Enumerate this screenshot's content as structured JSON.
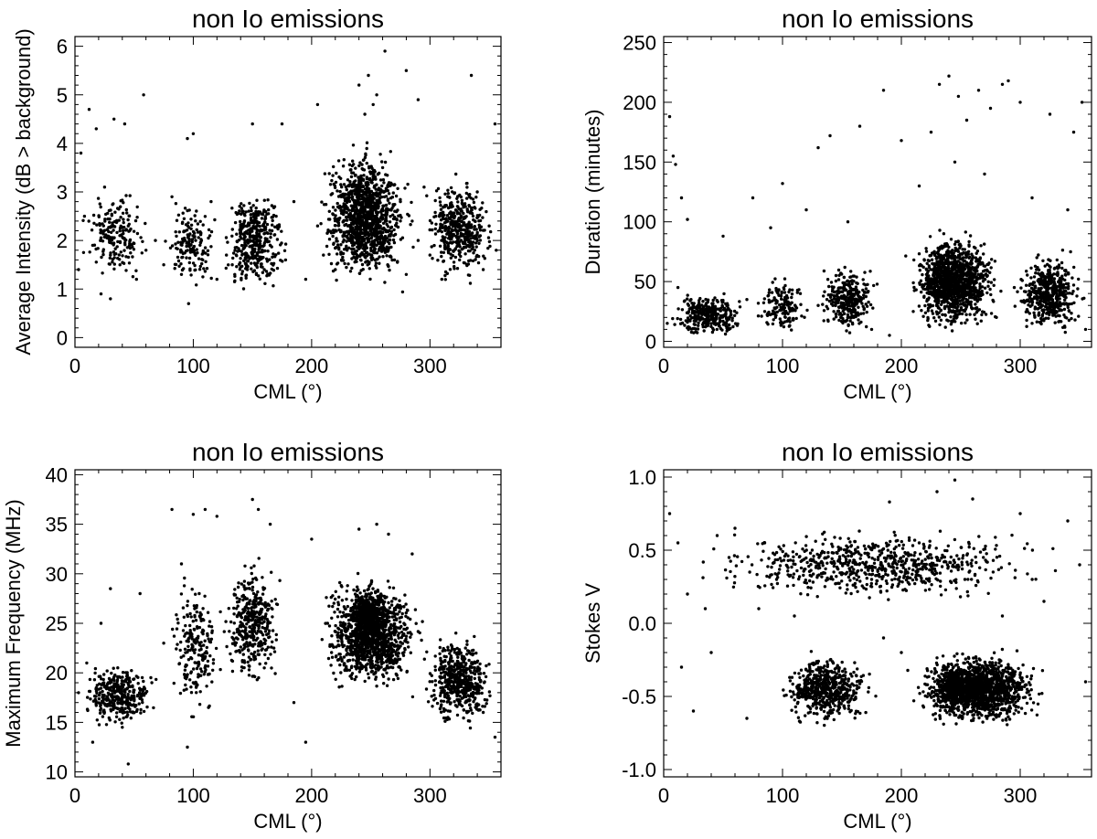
{
  "chart_data": [
    {
      "type": "scatter",
      "title": "non Io emissions",
      "xlabel": "CML (°)",
      "ylabel": "Average Intensity (dB > background)",
      "xlim": [
        0,
        360
      ],
      "ylim": [
        -0.2,
        6.2
      ],
      "xticks": [
        0,
        100,
        200,
        300
      ],
      "yticks": [
        0,
        1,
        2,
        3,
        4,
        5,
        6
      ],
      "xtick_labels": [
        "0",
        "100",
        "200",
        "300"
      ],
      "ytick_labels": [
        "0",
        "1",
        "2",
        "3",
        "4",
        "5",
        "6"
      ],
      "grid": false,
      "marker_color": "#000000",
      "points": [
        [
          5,
          3.8
        ],
        [
          12,
          4.7
        ],
        [
          18,
          4.3
        ],
        [
          25,
          3.1
        ],
        [
          33,
          4.5
        ],
        [
          42,
          4.4
        ],
        [
          58,
          5.0
        ],
        [
          95,
          4.1
        ],
        [
          100,
          4.2
        ],
        [
          150,
          4.4
        ],
        [
          175,
          4.4
        ],
        [
          205,
          4.8
        ],
        [
          240,
          5.2
        ],
        [
          248,
          5.4
        ],
        [
          255,
          5.0
        ],
        [
          262,
          5.9
        ],
        [
          280,
          5.5
        ],
        [
          290,
          4.9
        ],
        [
          335,
          5.4
        ],
        [
          355,
          4.4
        ],
        [
          245,
          4.6
        ],
        [
          252,
          4.8
        ],
        [
          3,
          1.4
        ],
        [
          8,
          2.5
        ],
        [
          15,
          1.9
        ],
        [
          22,
          0.9
        ],
        [
          30,
          0.8
        ],
        [
          38,
          1.5
        ],
        [
          45,
          2.3
        ],
        [
          52,
          1.2
        ],
        [
          60,
          1.8
        ],
        [
          68,
          2.0
        ],
        [
          75,
          1.5
        ],
        [
          82,
          2.9
        ],
        [
          90,
          1.3
        ],
        [
          96,
          0.7
        ],
        [
          102,
          2.0
        ],
        [
          108,
          1.6
        ],
        [
          115,
          2.8
        ],
        [
          120,
          1.2
        ],
        [
          128,
          1.7
        ],
        [
          135,
          1.3
        ],
        [
          140,
          2.2
        ],
        [
          145,
          1.5
        ],
        [
          150,
          1.7
        ],
        [
          155,
          2.0
        ],
        [
          160,
          1.4
        ],
        [
          165,
          1.9
        ],
        [
          170,
          2.5
        ],
        [
          178,
          1.6
        ],
        [
          185,
          2.8
        ],
        [
          195,
          1.2
        ],
        [
          205,
          2.3
        ],
        [
          210,
          1.7
        ],
        [
          215,
          2.6
        ],
        [
          220,
          1.4
        ],
        [
          225,
          2.9
        ],
        [
          230,
          1.8
        ],
        [
          235,
          2.4
        ],
        [
          240,
          3.2
        ],
        [
          245,
          2.1
        ],
        [
          250,
          2.6
        ],
        [
          255,
          1.9
        ],
        [
          260,
          3.5
        ],
        [
          265,
          2.2
        ],
        [
          270,
          1.6
        ],
        [
          275,
          2.8
        ],
        [
          280,
          1.3
        ],
        [
          285,
          2.4
        ],
        [
          290,
          2.0
        ],
        [
          295,
          3.1
        ],
        [
          300,
          1.7
        ],
        [
          305,
          2.5
        ],
        [
          310,
          1.2
        ],
        [
          315,
          2.9
        ],
        [
          320,
          2.1
        ],
        [
          325,
          1.6
        ],
        [
          330,
          2.7
        ],
        [
          335,
          1.9
        ],
        [
          340,
          3.0
        ],
        [
          345,
          1.4
        ],
        [
          350,
          2.3
        ],
        [
          356,
          1.8
        ]
      ],
      "clusters": [
        {
          "x": [
            0,
            70
          ],
          "y": [
            1.0,
            3.2
          ],
          "count": 180
        },
        {
          "x": [
            70,
            125
          ],
          "y": [
            0.8,
            3.0
          ],
          "count": 150
        },
        {
          "x": [
            120,
            185
          ],
          "y": [
            0.6,
            3.4
          ],
          "count": 380
        },
        {
          "x": [
            200,
            290
          ],
          "y": [
            0.8,
            4.2
          ],
          "count": 1150
        },
        {
          "x": [
            290,
            360
          ],
          "y": [
            0.9,
            3.6
          ],
          "count": 420
        }
      ]
    },
    {
      "type": "scatter",
      "title": "non Io emissions",
      "xlabel": "CML (°)",
      "ylabel": "Duration (minutes)",
      "xlim": [
        0,
        360
      ],
      "ylim": [
        -5,
        255
      ],
      "xticks": [
        0,
        100,
        200,
        300
      ],
      "yticks": [
        0,
        50,
        100,
        150,
        200,
        250
      ],
      "xtick_labels": [
        "0",
        "100",
        "200",
        "300"
      ],
      "ytick_labels": [
        "0",
        "50",
        "100",
        "150",
        "200",
        "250"
      ],
      "grid": false,
      "marker_color": "#000000",
      "points": [
        [
          5,
          188
        ],
        [
          8,
          155
        ],
        [
          10,
          148
        ],
        [
          15,
          120
        ],
        [
          20,
          102
        ],
        [
          100,
          132
        ],
        [
          130,
          162
        ],
        [
          140,
          172
        ],
        [
          165,
          180
        ],
        [
          185,
          210
        ],
        [
          200,
          168
        ],
        [
          225,
          175
        ],
        [
          232,
          215
        ],
        [
          240,
          222
        ],
        [
          248,
          205
        ],
        [
          255,
          185
        ],
        [
          265,
          210
        ],
        [
          275,
          195
        ],
        [
          285,
          215
        ],
        [
          290,
          218
        ],
        [
          300,
          200
        ],
        [
          325,
          190
        ],
        [
          345,
          175
        ],
        [
          352,
          200
        ],
        [
          50,
          88
        ],
        [
          75,
          120
        ],
        [
          90,
          95
        ],
        [
          120,
          110
        ],
        [
          155,
          100
        ],
        [
          215,
          130
        ],
        [
          245,
          150
        ],
        [
          270,
          140
        ],
        [
          310,
          120
        ],
        [
          340,
          110
        ],
        [
          3,
          15
        ],
        [
          12,
          45
        ],
        [
          25,
          30
        ],
        [
          40,
          20
        ],
        [
          55,
          10
        ],
        [
          70,
          35
        ],
        [
          85,
          25
        ],
        [
          100,
          15
        ],
        [
          115,
          40
        ],
        [
          130,
          30
        ],
        [
          145,
          55
        ],
        [
          160,
          20
        ],
        [
          175,
          10
        ],
        [
          190,
          5
        ],
        [
          210,
          25
        ],
        [
          225,
          60
        ],
        [
          235,
          40
        ],
        [
          250,
          80
        ],
        [
          265,
          35
        ],
        [
          280,
          20
        ],
        [
          295,
          45
        ],
        [
          310,
          15
        ],
        [
          325,
          55
        ],
        [
          340,
          30
        ],
        [
          355,
          10
        ]
      ],
      "clusters": [
        {
          "x": [
            0,
            75
          ],
          "y": [
            0,
            45
          ],
          "count": 300
        },
        {
          "x": [
            75,
            125
          ],
          "y": [
            0,
            60
          ],
          "count": 150
        },
        {
          "x": [
            125,
            185
          ],
          "y": [
            0,
            70
          ],
          "count": 300
        },
        {
          "x": [
            200,
            290
          ],
          "y": [
            0,
            100
          ],
          "count": 1200
        },
        {
          "x": [
            290,
            360
          ],
          "y": [
            0,
            80
          ],
          "count": 500
        }
      ]
    },
    {
      "type": "scatter",
      "title": "non Io emissions",
      "xlabel": "CML (°)",
      "ylabel": "Maximum Frequency (MHz)",
      "xlim": [
        0,
        360
      ],
      "ylim": [
        9.5,
        40.5
      ],
      "xticks": [
        0,
        100,
        200,
        300
      ],
      "yticks": [
        10,
        15,
        20,
        25,
        30,
        35,
        40
      ],
      "xtick_labels": [
        "0",
        "100",
        "200",
        "300"
      ],
      "ytick_labels": [
        "10",
        "15",
        "20",
        "25",
        "30",
        "35",
        "40"
      ],
      "grid": false,
      "marker_color": "#000000",
      "points": [
        [
          45,
          10.8
        ],
        [
          82,
          36.5
        ],
        [
          100,
          36.0
        ],
        [
          110,
          36.5
        ],
        [
          120,
          35.8
        ],
        [
          150,
          37.5
        ],
        [
          155,
          36.5
        ],
        [
          165,
          35.0
        ],
        [
          200,
          33.5
        ],
        [
          240,
          34.5
        ],
        [
          255,
          35.0
        ],
        [
          265,
          34.0
        ],
        [
          285,
          32.0
        ],
        [
          3,
          18.0
        ],
        [
          10,
          21.0
        ],
        [
          15,
          13.0
        ],
        [
          22,
          25.0
        ],
        [
          30,
          28.5
        ],
        [
          40,
          14.5
        ],
        [
          55,
          28.0
        ],
        [
          65,
          19.0
        ],
        [
          75,
          23.0
        ],
        [
          90,
          31.0
        ],
        [
          95,
          12.5
        ],
        [
          105,
          28.0
        ],
        [
          130,
          26.5
        ],
        [
          160,
          20.5
        ],
        [
          185,
          17.0
        ],
        [
          195,
          13.0
        ],
        [
          355,
          13.5
        ],
        [
          345,
          16.0
        ],
        [
          330,
          22.5
        ],
        [
          320,
          19.0
        ]
      ],
      "clusters": [
        {
          "x": [
            0,
            75
          ],
          "y": [
            14.0,
            21.5
          ],
          "count": 350
        },
        {
          "x": [
            75,
            130
          ],
          "y": [
            14.0,
            31.0
          ],
          "count": 200
        },
        {
          "x": [
            120,
            180
          ],
          "y": [
            17.0,
            33.0
          ],
          "count": 380
        },
        {
          "x": [
            200,
            300
          ],
          "y": [
            17.0,
            31.0
          ],
          "count": 1250
        },
        {
          "x": [
            230,
            265
          ],
          "y": [
            23.0,
            29.0
          ],
          "count": 300
        },
        {
          "x": [
            290,
            360
          ],
          "y": [
            13.5,
            25.0
          ],
          "count": 500
        }
      ]
    },
    {
      "type": "scatter",
      "title": "non Io emissions",
      "xlabel": "CML (°)",
      "ylabel": "Stokes V",
      "xlim": [
        0,
        360
      ],
      "ylim": [
        -1.05,
        1.05
      ],
      "xticks": [
        0,
        100,
        200,
        300
      ],
      "yticks": [
        -1.0,
        -0.5,
        0.0,
        0.5,
        1.0
      ],
      "xtick_labels": [
        "0",
        "100",
        "200",
        "300"
      ],
      "ytick_labels": [
        "-1.0",
        "-0.5",
        "0.0",
        "0.5",
        "1.0"
      ],
      "grid": false,
      "marker_color": "#000000",
      "points": [
        [
          5,
          0.75
        ],
        [
          15,
          -0.3
        ],
        [
          25,
          -0.6
        ],
        [
          45,
          0.6
        ],
        [
          60,
          0.65
        ],
        [
          70,
          -0.65
        ],
        [
          85,
          0.55
        ],
        [
          190,
          0.83
        ],
        [
          200,
          -0.2
        ],
        [
          230,
          0.9
        ],
        [
          245,
          0.98
        ],
        [
          260,
          0.85
        ],
        [
          300,
          0.75
        ],
        [
          340,
          0.7
        ],
        [
          355,
          -0.4
        ],
        [
          12,
          0.55
        ],
        [
          20,
          0.2
        ],
        [
          35,
          0.1
        ],
        [
          40,
          -0.2
        ],
        [
          55,
          0.45
        ],
        [
          80,
          0.1
        ],
        [
          95,
          0.3
        ],
        [
          110,
          0.05
        ],
        [
          125,
          0.5
        ],
        [
          175,
          0.3
        ],
        [
          185,
          -0.1
        ],
        [
          215,
          0.55
        ],
        [
          285,
          0.05
        ],
        [
          320,
          0.15
        ],
        [
          350,
          0.4
        ]
      ],
      "clusters": [
        {
          "x": [
            0,
            360
          ],
          "y": [
            0.1,
            0.7
          ],
          "count": 700
        },
        {
          "x": [
            90,
            185
          ],
          "y": [
            -0.75,
            -0.15
          ],
          "count": 550
        },
        {
          "x": [
            200,
            330
          ],
          "y": [
            -0.75,
            -0.15
          ],
          "count": 1400
        },
        {
          "x": [
            230,
            260
          ],
          "y": [
            -0.6,
            -0.25
          ],
          "count": 250
        }
      ]
    }
  ]
}
